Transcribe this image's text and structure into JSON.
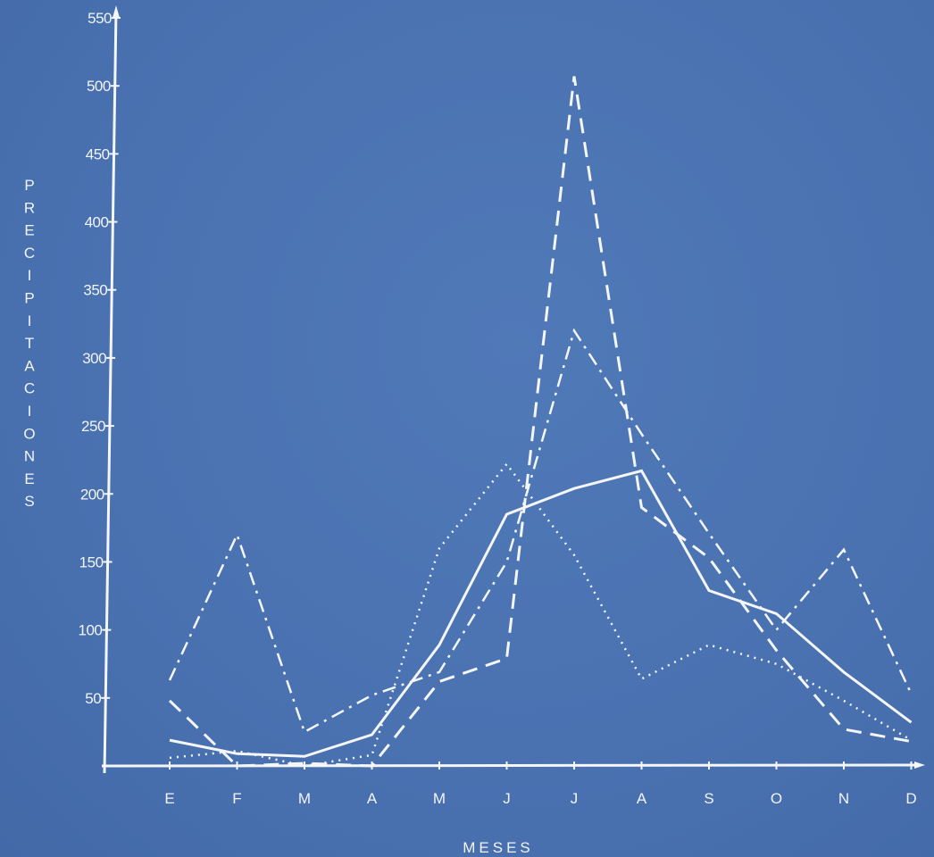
{
  "chart_data": {
    "type": "line",
    "xlabel": "MESES",
    "ylabel": "PRECIPITACIONES",
    "categories": [
      "E",
      "F",
      "M",
      "A",
      "M",
      "J",
      "J",
      "A",
      "S",
      "O",
      "N",
      "D"
    ],
    "ylim": [
      0,
      550
    ],
    "yticks": [
      50,
      100,
      150,
      200,
      250,
      300,
      350,
      400,
      450,
      500,
      550
    ],
    "ytick_labels": [
      "50",
      "100",
      "150",
      "200",
      "250",
      "300",
      "350",
      "400",
      "450",
      "500",
      "550"
    ],
    "legend": "none",
    "grid": false,
    "series": [
      {
        "style": "solid",
        "values": [
          19,
          9,
          7,
          23,
          89,
          185,
          204,
          217,
          129,
          112,
          69,
          32
        ]
      },
      {
        "style": "dashed",
        "values": [
          48,
          0,
          2,
          0,
          62,
          79,
          507,
          190,
          153,
          85,
          27,
          18
        ]
      },
      {
        "style": "dotted",
        "values": [
          6,
          11,
          0,
          8,
          160,
          222,
          155,
          64,
          89,
          75,
          48,
          19
        ]
      },
      {
        "style": "dashdot",
        "values": [
          63,
          170,
          25,
          52,
          69,
          150,
          320,
          244,
          171,
          100,
          159,
          53
        ]
      }
    ]
  }
}
